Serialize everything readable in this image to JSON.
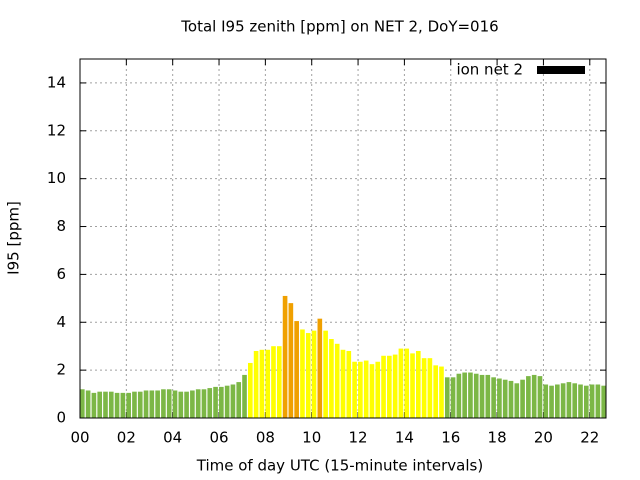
{
  "chart_data": {
    "type": "bar",
    "title": "Total I95 zenith [ppm] on NET 2, DoY=016",
    "xlabel": "Time of day UTC (15-minute intervals)",
    "ylabel": "I95 [ppm]",
    "x": [
      0,
      0.25,
      0.5,
      0.75,
      1,
      1.25,
      1.5,
      1.75,
      2,
      2.25,
      2.5,
      2.75,
      3,
      3.25,
      3.5,
      3.75,
      4,
      4.25,
      4.5,
      4.75,
      5,
      5.25,
      5.5,
      5.75,
      6,
      6.25,
      6.5,
      6.75,
      7,
      7.25,
      7.5,
      7.75,
      8,
      8.25,
      8.5,
      8.75,
      9,
      9.25,
      9.5,
      9.75,
      10,
      10.25,
      10.5,
      10.75,
      11,
      11.25,
      11.5,
      11.75,
      12,
      12.25,
      12.5,
      12.75,
      13,
      13.25,
      13.5,
      13.75,
      14,
      14.25,
      14.5,
      14.75,
      15,
      15.25,
      15.5,
      15.75,
      16,
      16.25,
      16.5,
      16.75,
      17,
      17.25,
      17.5,
      17.75,
      18,
      18.25,
      18.5,
      18.75,
      19,
      19.25,
      19.5,
      19.75,
      20,
      20.25,
      20.5,
      20.75,
      21,
      21.25,
      21.5,
      21.75,
      22,
      22.25,
      22.5
    ],
    "series": [
      {
        "name": "ion net 2",
        "color": "#000000",
        "values": [
          1.2,
          1.15,
          1.05,
          1.1,
          1.1,
          1.1,
          1.05,
          1.05,
          1.05,
          1.1,
          1.1,
          1.15,
          1.15,
          1.15,
          1.2,
          1.2,
          1.15,
          1.1,
          1.1,
          1.15,
          1.2,
          1.2,
          1.25,
          1.3,
          1.3,
          1.35,
          1.4,
          1.5,
          1.8,
          2.3,
          2.8,
          2.85,
          2.85,
          3.0,
          3.0,
          5.1,
          4.8,
          4.05,
          3.7,
          3.55,
          3.65,
          4.15,
          3.65,
          3.3,
          3.1,
          2.85,
          2.8,
          2.35,
          2.35,
          2.4,
          2.25,
          2.35,
          2.6,
          2.6,
          2.65,
          2.9,
          2.9,
          2.7,
          2.8,
          2.5,
          2.5,
          2.2,
          2.15,
          1.7,
          1.7,
          1.85,
          1.9,
          1.9,
          1.85,
          1.8,
          1.8,
          1.7,
          1.65,
          1.6,
          1.55,
          1.45,
          1.6,
          1.75,
          1.8,
          1.75,
          1.4,
          1.35,
          1.4,
          1.45,
          1.5,
          1.45,
          1.4,
          1.35,
          1.4,
          1.4,
          1.35
        ]
      }
    ],
    "color_scale": [
      {
        "min": 0,
        "color": "#7cb746"
      },
      {
        "min": 2,
        "color": "#ffff00"
      },
      {
        "min": 4,
        "color": "#f0a000"
      }
    ],
    "bar_width": 0.2,
    "xlim": [
      0,
      22.7
    ],
    "ylim": [
      0,
      15
    ],
    "xticks": [
      {
        "value": 0,
        "label": "00"
      },
      {
        "value": 2,
        "label": "02"
      },
      {
        "value": 4,
        "label": "04"
      },
      {
        "value": 6,
        "label": "06"
      },
      {
        "value": 8,
        "label": "08"
      },
      {
        "value": 10,
        "label": "10"
      },
      {
        "value": 12,
        "label": "12"
      },
      {
        "value": 14,
        "label": "14"
      },
      {
        "value": 16,
        "label": "16"
      },
      {
        "value": 18,
        "label": "18"
      },
      {
        "value": 20,
        "label": "20"
      },
      {
        "value": 22,
        "label": "22"
      }
    ],
    "yticks": [
      0,
      2,
      4,
      6,
      8,
      10,
      12,
      14
    ],
    "grid": true,
    "legend": "top-right"
  }
}
